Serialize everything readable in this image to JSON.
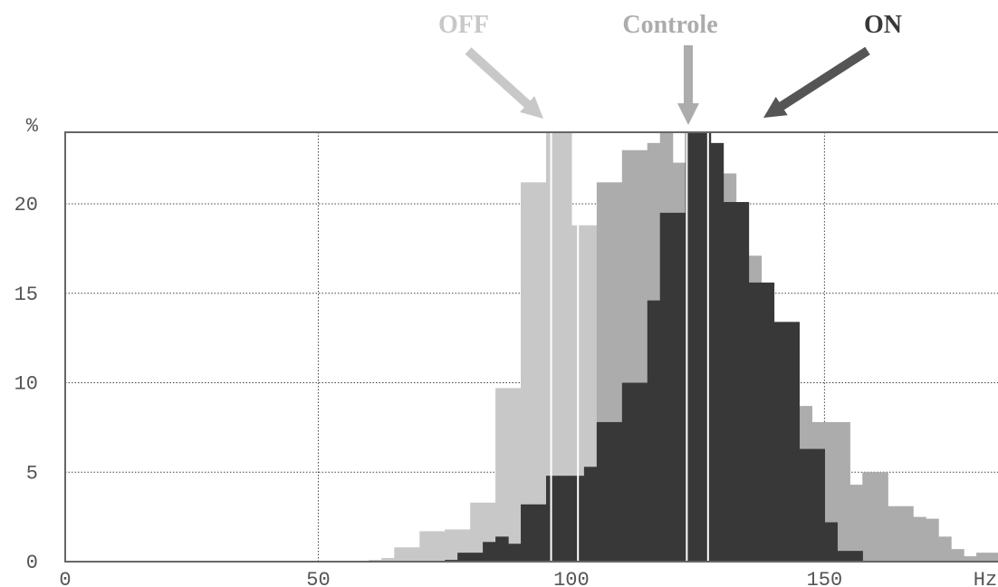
{
  "chart_data": {
    "type": "bar",
    "xlabel": "Hz",
    "ylabel": "%",
    "xlim": [
      0,
      185
    ],
    "ylim": [
      0,
      24
    ],
    "bin_width": 2.5,
    "x_ticks": [
      0,
      50,
      100,
      150
    ],
    "y_ticks": [
      0,
      5,
      10,
      15,
      20
    ],
    "grid": true,
    "colors": {
      "OFF": "#c8c8c8",
      "Controle": "#acacac",
      "ON": "#383838"
    },
    "series": [
      {
        "name": "OFF",
        "x": [
          60,
          62.5,
          65,
          67.5,
          70,
          72.5,
          75,
          77.5,
          80,
          82.5,
          85,
          87.5,
          90,
          92.5,
          95,
          97.5,
          100,
          102.5,
          105,
          107.5,
          110,
          112.5,
          115,
          117.5
        ],
        "values": [
          0.1,
          0.2,
          0.8,
          0.8,
          1.7,
          1.7,
          1.8,
          1.8,
          3.3,
          3.3,
          9.7,
          9.7,
          21.2,
          21.2,
          24.2,
          24.2,
          18.8,
          18.8,
          12.2,
          7.6,
          4.3,
          4.3,
          2.2,
          2.2
        ]
      },
      {
        "name": "Controle",
        "x": [
          102.5,
          105,
          107.5,
          110,
          112.5,
          115,
          117.5,
          120,
          122.5,
          125,
          127.5,
          130,
          132.5,
          135,
          137.5,
          140,
          142.5,
          145,
          147.5,
          150,
          152.5,
          155,
          157.5,
          160,
          162.5,
          165,
          167.5,
          170,
          172.5,
          175,
          177.5,
          180,
          182.5
        ],
        "values": [
          2.5,
          21.2,
          21.2,
          23.0,
          23.0,
          23.4,
          24.5,
          22.3,
          22.3,
          21.7,
          21.7,
          21.7,
          17.1,
          17.1,
          14.0,
          11.7,
          11.7,
          8.7,
          7.8,
          7.8,
          7.8,
          4.3,
          5.0,
          5.0,
          3.1,
          3.1,
          2.5,
          2.4,
          1.4,
          0.7,
          0.3,
          0.5,
          0.5
        ]
      },
      {
        "name": "ON",
        "x": [
          75,
          77.5,
          80,
          82.5,
          85,
          87.5,
          90,
          92.5,
          95,
          97.5,
          100,
          102.5,
          105,
          107.5,
          110,
          112.5,
          115,
          117.5,
          120,
          122.5,
          125,
          127.5,
          130,
          132.5,
          135,
          137.5,
          140,
          142.5,
          145,
          147.5,
          150,
          152.5,
          155,
          157.5
        ],
        "values": [
          0.1,
          0.5,
          0.5,
          1.1,
          1.4,
          1.0,
          3.2,
          3.2,
          4.8,
          4.8,
          4.8,
          5.3,
          7.8,
          7.8,
          10.0,
          10.0,
          14.6,
          19.5,
          19.5,
          24.2,
          24.2,
          23.4,
          20.1,
          20.1,
          15.6,
          15.6,
          13.4,
          13.4,
          6.3,
          6.3,
          2.2,
          0.6,
          0.6,
          0.0
        ]
      }
    ],
    "annotations": [
      {
        "label": "OFF",
        "target_x": 96,
        "label_color": "#c8c8c8",
        "arrow_color": "#c8c8c8"
      },
      {
        "label": "Controle",
        "target_x": 125.5,
        "label_color": "#acacac",
        "arrow_color": "#acacac"
      },
      {
        "label": "ON",
        "target_x": 139,
        "label_color": "#383838",
        "arrow_color": "#555555"
      }
    ],
    "median_lines": [
      {
        "series": "OFF",
        "x": 96
      },
      {
        "series": "OFF",
        "x": 101.3
      },
      {
        "series": "Controle",
        "x": 122.8
      },
      {
        "series": "ON",
        "x": 127
      }
    ]
  }
}
